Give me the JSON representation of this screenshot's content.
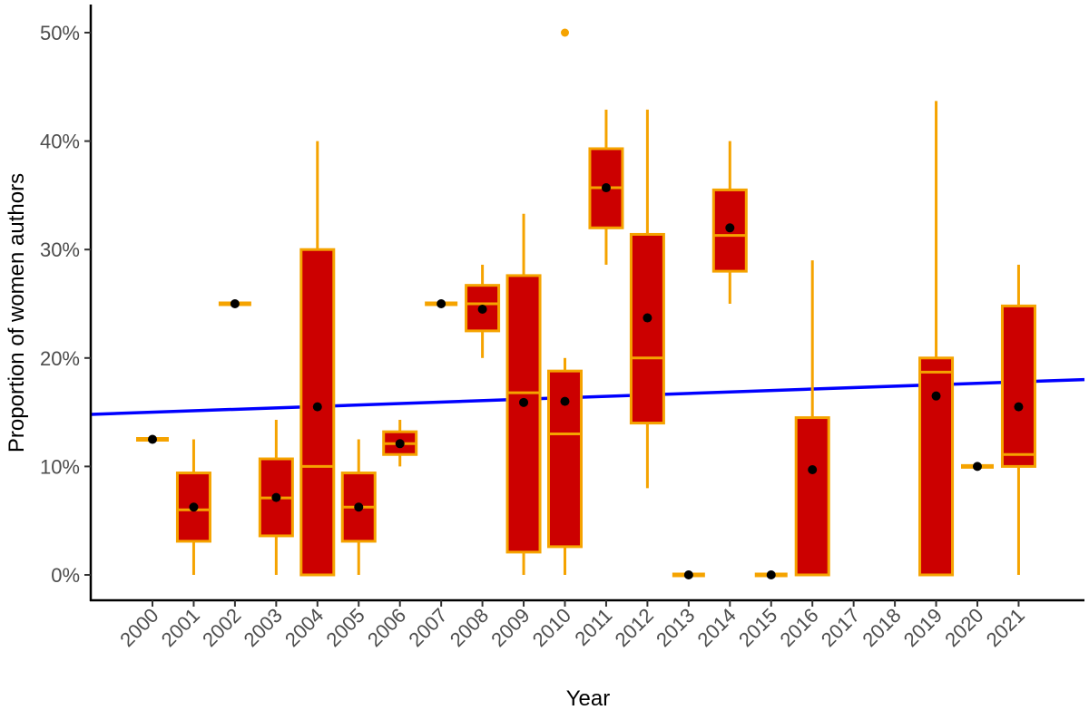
{
  "chart_data": {
    "type": "boxplot",
    "xlabel": "Year",
    "ylabel": "Proportion of women authors",
    "ylim": [
      0,
      0.5
    ],
    "yticks": [
      0,
      0.1,
      0.2,
      0.3,
      0.4,
      0.5
    ],
    "ytick_labels": [
      "0%",
      "10%",
      "20%",
      "30%",
      "40%",
      "50%"
    ],
    "categories": [
      "2000",
      "2001",
      "2002",
      "2003",
      "2004",
      "2005",
      "2006",
      "2007",
      "2008",
      "2009",
      "2010",
      "2011",
      "2012",
      "2013",
      "2014",
      "2015",
      "2016",
      "2017",
      "2018",
      "2019",
      "2020",
      "2021"
    ],
    "boxes": [
      {
        "year": "2000",
        "min": 0.125,
        "q1": 0.125,
        "median": 0.125,
        "q3": 0.125,
        "max": 0.125,
        "mean": 0.125
      },
      {
        "year": "2001",
        "min": 0.0,
        "q1": 0.031,
        "median": 0.06,
        "q3": 0.094,
        "max": 0.125,
        "mean": 0.0625
      },
      {
        "year": "2002",
        "min": 0.25,
        "q1": 0.25,
        "median": 0.25,
        "q3": 0.25,
        "max": 0.25,
        "mean": 0.25
      },
      {
        "year": "2003",
        "min": 0.0,
        "q1": 0.036,
        "median": 0.071,
        "q3": 0.107,
        "max": 0.143,
        "mean": 0.0714
      },
      {
        "year": "2004",
        "min": 0.0,
        "q1": 0.0,
        "median": 0.1,
        "q3": 0.3,
        "max": 0.4,
        "mean": 0.155
      },
      {
        "year": "2005",
        "min": 0.0,
        "q1": 0.031,
        "median": 0.0625,
        "q3": 0.094,
        "max": 0.125,
        "mean": 0.0625
      },
      {
        "year": "2006",
        "min": 0.1,
        "q1": 0.111,
        "median": 0.121,
        "q3": 0.132,
        "max": 0.143,
        "mean": 0.121
      },
      {
        "year": "2007",
        "min": 0.25,
        "q1": 0.25,
        "median": 0.25,
        "q3": 0.25,
        "max": 0.25,
        "mean": 0.25
      },
      {
        "year": "2008",
        "min": 0.2,
        "q1": 0.225,
        "median": 0.25,
        "q3": 0.267,
        "max": 0.286,
        "mean": 0.245
      },
      {
        "year": "2009",
        "min": 0.0,
        "q1": 0.021,
        "median": 0.168,
        "q3": 0.276,
        "max": 0.333,
        "mean": 0.159
      },
      {
        "year": "2010",
        "min": 0.0,
        "q1": 0.026,
        "median": 0.13,
        "q3": 0.188,
        "max": 0.2,
        "mean": 0.16,
        "outliers": [
          0.5
        ]
      },
      {
        "year": "2011",
        "min": 0.286,
        "q1": 0.32,
        "median": 0.357,
        "q3": 0.393,
        "max": 0.429,
        "mean": 0.357
      },
      {
        "year": "2012",
        "min": 0.08,
        "q1": 0.14,
        "median": 0.2,
        "q3": 0.314,
        "max": 0.429,
        "mean": 0.237
      },
      {
        "year": "2013",
        "min": 0.0,
        "q1": 0.0,
        "median": 0.0,
        "q3": 0.0,
        "max": 0.0,
        "mean": 0.0
      },
      {
        "year": "2014",
        "min": 0.25,
        "q1": 0.28,
        "median": 0.313,
        "q3": 0.355,
        "max": 0.4,
        "mean": 0.32
      },
      {
        "year": "2015",
        "min": 0.0,
        "q1": 0.0,
        "median": 0.0,
        "q3": 0.0,
        "max": 0.0,
        "mean": 0.0
      },
      {
        "year": "2016",
        "min": 0.0,
        "q1": 0.0,
        "median": 0.0,
        "q3": 0.145,
        "max": 0.29,
        "mean": 0.097
      },
      {
        "year": "2019",
        "min": 0.0,
        "q1": 0.0,
        "median": 0.187,
        "q3": 0.2,
        "max": 0.437,
        "mean": 0.165
      },
      {
        "year": "2020",
        "min": 0.1,
        "q1": 0.1,
        "median": 0.1,
        "q3": 0.1,
        "max": 0.1,
        "mean": 0.1
      },
      {
        "year": "2021",
        "min": 0.0,
        "q1": 0.1,
        "median": 0.111,
        "q3": 0.248,
        "max": 0.286,
        "mean": 0.155
      }
    ],
    "trend_line": {
      "x_start": "2000",
      "y_start": 0.15,
      "x_end": "2021",
      "y_end": 0.178
    },
    "colors": {
      "box_fill": "#cc0000",
      "box_stroke": "#f5a300",
      "mean_point": "#000000",
      "trend_line": "#0000ff",
      "axis": "#000000"
    },
    "grid": false
  }
}
